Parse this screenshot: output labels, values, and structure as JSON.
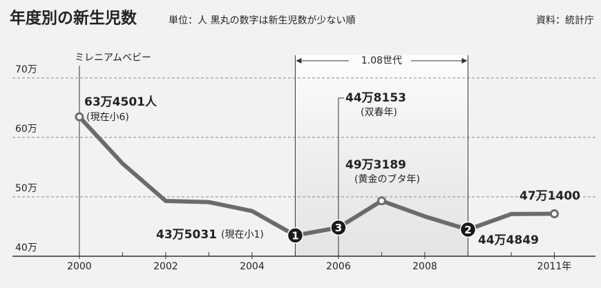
{
  "chart_data": {
    "type": "line",
    "title": "年度別の新生児数",
    "subtitle": "単位：人 黒丸の数字は新生児数が少ない順",
    "source": "資料：統計庁",
    "annotations": {
      "millennium": "ミレニアムベビー",
      "generation": "1.08世代"
    },
    "x": [
      2000,
      2001,
      2002,
      2003,
      2004,
      2005,
      2006,
      2007,
      2008,
      2009,
      2010,
      2011
    ],
    "values": [
      63.4501,
      55.6,
      49.3,
      49.1,
      47.6,
      43.5031,
      44.8153,
      49.3189,
      46.7,
      44.4849,
      47.1,
      47.14
    ],
    "value_labels": [
      "63万4501人",
      null,
      null,
      null,
      null,
      "43万5031",
      "44万8153",
      "49万3189",
      null,
      "44万4849",
      null,
      "47万1400"
    ],
    "notes": [
      "(現在小6)",
      null,
      null,
      null,
      null,
      "(現在小1)",
      "(双春年)",
      "(黄金のブタ年)",
      null,
      null,
      null,
      null
    ],
    "ranks": [
      null,
      null,
      null,
      null,
      null,
      1,
      3,
      null,
      null,
      2,
      null,
      null
    ],
    "color": "#6b6b6b",
    "xlim": [
      1998.45,
      2012.08
    ],
    "xticks": [
      2000,
      2002,
      2004,
      2006,
      2008,
      {
        "value": 2011,
        "label": "2011年"
      }
    ],
    "ylim": [
      40,
      73
    ],
    "yticks": [
      {
        "value": 40,
        "label": "40万"
      },
      {
        "value": 50,
        "label": "50万"
      },
      {
        "value": 60,
        "label": "60万"
      },
      {
        "value": 70,
        "label": "70万"
      }
    ],
    "grid": true
  }
}
